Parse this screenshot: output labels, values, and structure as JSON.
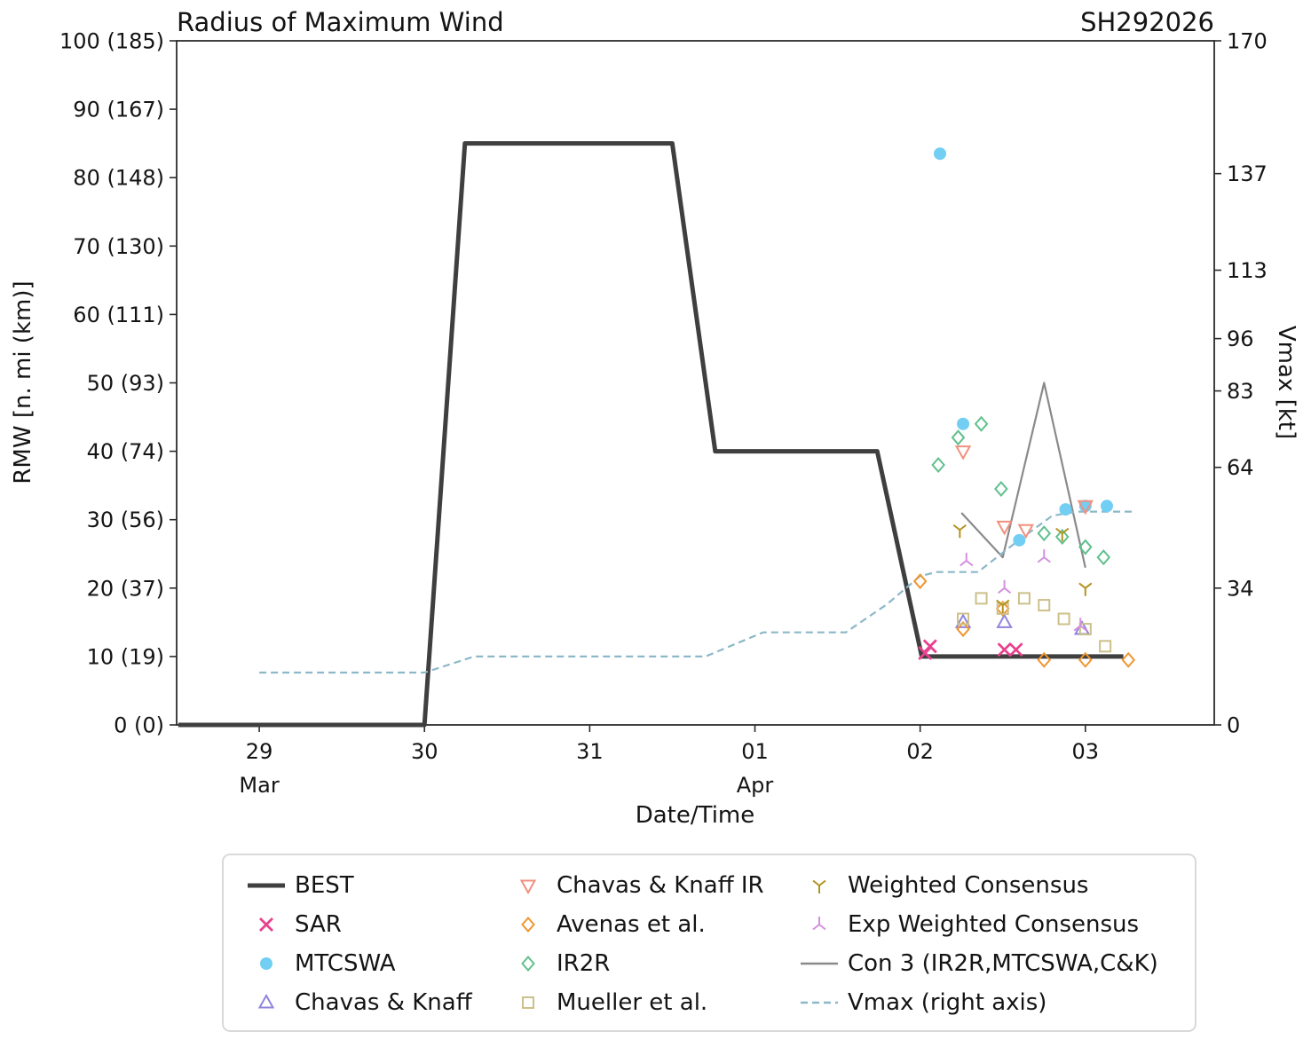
{
  "chart_data": {
    "type": "line+scatter",
    "title": "Radius of Maximum Wind",
    "storm_id": "SH292026",
    "xlabel": "Date/Time",
    "ylabel_left": "RMW [n. mi (km)]",
    "ylabel_right": "Vmax [kt]",
    "axes": {
      "x": {
        "domain_days": [
          -0.5,
          5.78
        ],
        "ticks": [
          {
            "d": 0,
            "label": "29"
          },
          {
            "d": 1,
            "label": "30"
          },
          {
            "d": 2,
            "label": "31"
          },
          {
            "d": 3,
            "label": "01"
          },
          {
            "d": 4,
            "label": "02"
          },
          {
            "d": 5,
            "label": "03"
          }
        ],
        "month_labels": [
          {
            "d": 0,
            "label": "Mar"
          },
          {
            "d": 3,
            "label": "Apr"
          }
        ]
      },
      "y_left": {
        "domain": [
          0,
          100
        ],
        "ticks": [
          {
            "v": 0,
            "label": "0 (0)"
          },
          {
            "v": 10,
            "label": "10 (19)"
          },
          {
            "v": 20,
            "label": "20 (37)"
          },
          {
            "v": 30,
            "label": "30 (56)"
          },
          {
            "v": 40,
            "label": "40 (74)"
          },
          {
            "v": 50,
            "label": "50 (93)"
          },
          {
            "v": 60,
            "label": "60 (111)"
          },
          {
            "v": 70,
            "label": "70 (130)"
          },
          {
            "v": 80,
            "label": "80 (148)"
          },
          {
            "v": 90,
            "label": "90 (167)"
          },
          {
            "v": 100,
            "label": "100 (185)"
          }
        ]
      },
      "y_right": {
        "domain": [
          0,
          170
        ],
        "ticks": [
          {
            "v": 0,
            "label": "0"
          },
          {
            "v": 34,
            "label": "34"
          },
          {
            "v": 64,
            "label": "64"
          },
          {
            "v": 83,
            "label": "83"
          },
          {
            "v": 96,
            "label": "96"
          },
          {
            "v": 113,
            "label": "113"
          },
          {
            "v": 137,
            "label": "137"
          },
          {
            "v": 170,
            "label": "170"
          }
        ]
      }
    },
    "series": [
      {
        "key": "best",
        "label": "BEST",
        "color": "#3f3f3f",
        "kind": "line",
        "width": 5,
        "axis": "left",
        "points": [
          [
            -0.49,
            0
          ],
          [
            1.0,
            0
          ],
          [
            1.245,
            85
          ],
          [
            2.5,
            85
          ],
          [
            2.76,
            40
          ],
          [
            3.74,
            40
          ],
          [
            4.01,
            10
          ],
          [
            5.23,
            10
          ]
        ]
      },
      {
        "key": "sar",
        "label": "SAR",
        "color": "#e8418f",
        "kind": "scatter",
        "marker": "x",
        "axis": "left",
        "points": [
          [
            4.03,
            10.5
          ],
          [
            4.06,
            11.5
          ],
          [
            4.51,
            11
          ],
          [
            4.58,
            11
          ]
        ]
      },
      {
        "key": "mtcswa",
        "label": "MTCSWA",
        "color": "#72cef2",
        "kind": "scatter",
        "marker": "dot",
        "axis": "left",
        "points": [
          [
            4.12,
            83.5
          ],
          [
            4.26,
            44
          ],
          [
            4.6,
            27
          ],
          [
            4.88,
            31.5
          ],
          [
            5.0,
            32
          ],
          [
            5.13,
            32
          ]
        ]
      },
      {
        "key": "chavas_knaff",
        "label": "Chavas & Knaff",
        "color": "#8f84dc",
        "kind": "scatter",
        "marker": "triangle-up",
        "axis": "left",
        "points": [
          [
            4.26,
            15
          ],
          [
            4.51,
            15
          ],
          [
            4.98,
            14
          ]
        ]
      },
      {
        "key": "chavas_knaff_ir",
        "label": "Chavas & Knaff IR",
        "color": "#f0907f",
        "kind": "scatter",
        "marker": "triangle-down",
        "axis": "left",
        "points": [
          [
            4.26,
            40
          ],
          [
            4.51,
            29
          ],
          [
            4.64,
            28.5
          ],
          [
            5.0,
            32
          ]
        ]
      },
      {
        "key": "avenas",
        "label": "Avenas et al.",
        "color": "#f0952f",
        "kind": "scatter",
        "marker": "diamond",
        "axis": "left",
        "points": [
          [
            4.0,
            21
          ],
          [
            4.26,
            14
          ],
          [
            4.5,
            17
          ],
          [
            4.75,
            9.5
          ],
          [
            5.0,
            9.5
          ],
          [
            5.26,
            9.5
          ]
        ]
      },
      {
        "key": "ir2r",
        "label": "IR2R",
        "color": "#5fc08d",
        "kind": "scatter",
        "marker": "diamond",
        "axis": "left",
        "points": [
          [
            4.11,
            38
          ],
          [
            4.23,
            42
          ],
          [
            4.37,
            44
          ],
          [
            4.49,
            34.5
          ],
          [
            4.75,
            28
          ],
          [
            4.86,
            27.5
          ],
          [
            5.0,
            26
          ],
          [
            5.11,
            24.5
          ]
        ]
      },
      {
        "key": "mueller",
        "label": "Mueller et al.",
        "color": "#ccc08a",
        "kind": "scatter",
        "marker": "square",
        "axis": "left",
        "points": [
          [
            4.26,
            15.5
          ],
          [
            4.37,
            18.5
          ],
          [
            4.5,
            17
          ],
          [
            4.63,
            18.5
          ],
          [
            4.75,
            17.5
          ],
          [
            4.87,
            15.5
          ],
          [
            5.0,
            14
          ],
          [
            5.12,
            11.5
          ]
        ]
      },
      {
        "key": "weighted_consensus",
        "label": "Weighted Consensus",
        "color": "#b3931f",
        "kind": "scatter",
        "marker": "y-down",
        "axis": "left",
        "points": [
          [
            4.24,
            28.5
          ],
          [
            4.5,
            17.5
          ],
          [
            4.86,
            28
          ],
          [
            5.0,
            20
          ]
        ]
      },
      {
        "key": "exp_weighted_consensus",
        "label": "Exp Weighted Consensus",
        "color": "#d490e0",
        "kind": "scatter",
        "marker": "y-up",
        "axis": "left",
        "points": [
          [
            4.28,
            24
          ],
          [
            4.51,
            20
          ],
          [
            4.75,
            24.5
          ],
          [
            4.97,
            14.5
          ]
        ]
      },
      {
        "key": "con3",
        "label": "Con 3 (IR2R,MTCSWA,C&K)",
        "color": "#8a8a8a",
        "kind": "line",
        "width": 2.2,
        "axis": "left",
        "points": [
          [
            4.25,
            31
          ],
          [
            4.5,
            24.5
          ],
          [
            4.75,
            50
          ],
          [
            5.0,
            23
          ]
        ]
      },
      {
        "key": "vmax",
        "label": "Vmax (right axis)",
        "color": "#8cb8c8",
        "kind": "line",
        "width": 2.2,
        "dash": "8 5",
        "axis": "right",
        "points": [
          [
            0,
            13
          ],
          [
            1.0,
            13
          ],
          [
            1.3,
            17
          ],
          [
            2.7,
            17
          ],
          [
            3.05,
            23
          ],
          [
            3.55,
            23
          ],
          [
            3.8,
            30
          ],
          [
            4.0,
            37
          ],
          [
            4.1,
            38
          ],
          [
            4.35,
            38
          ],
          [
            4.6,
            46
          ],
          [
            4.8,
            52
          ],
          [
            4.95,
            53
          ],
          [
            5.3,
            53
          ]
        ]
      }
    ],
    "legend_columns": [
      [
        "best",
        "sar",
        "mtcswa",
        "chavas_knaff"
      ],
      [
        "chavas_knaff_ir",
        "avenas",
        "ir2r",
        "mueller"
      ],
      [
        "weighted_consensus",
        "exp_weighted_consensus",
        "con3",
        "vmax"
      ]
    ]
  }
}
